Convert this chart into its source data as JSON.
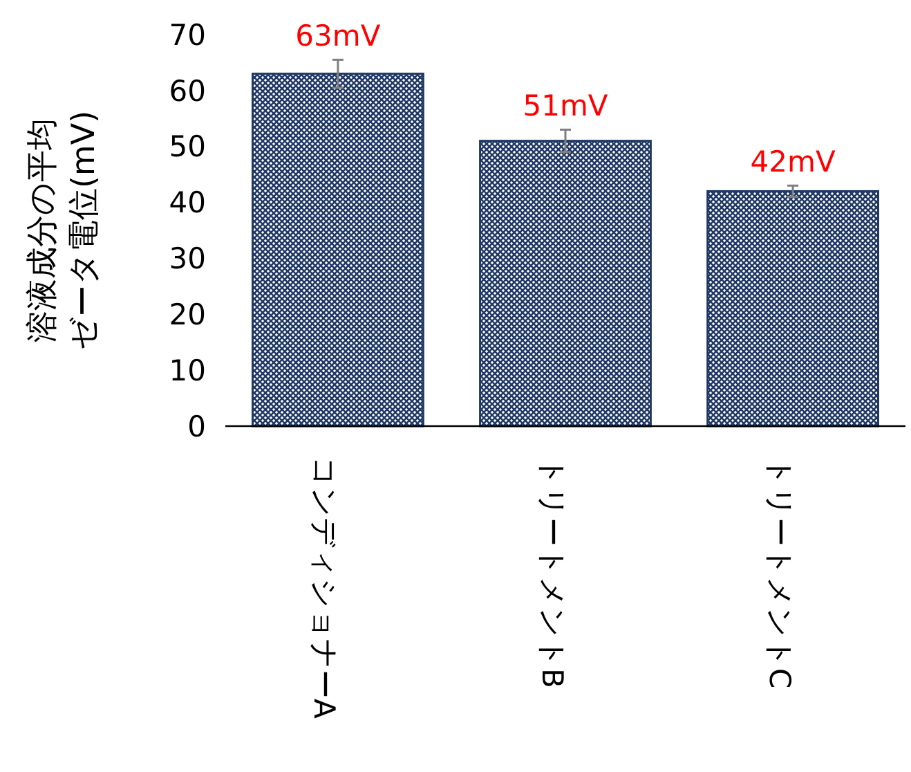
{
  "chart_data": {
    "type": "bar",
    "ylabel": "溶液成分の平均ゼータ電位(mV)",
    "categories": [
      "コンディショナーA",
      "トリートメントB",
      "トリートメントC"
    ],
    "values": [
      63,
      51,
      42
    ],
    "color": "#1f3864",
    "errors": [
      2.5,
      2,
      1
    ],
    "value_labels": [
      "63mV",
      "51mV",
      "42mV"
    ],
    "ylim": [
      0,
      70
    ],
    "yticks": [
      0,
      10,
      20,
      30,
      40,
      50,
      60,
      70
    ],
    "grid": false
  }
}
